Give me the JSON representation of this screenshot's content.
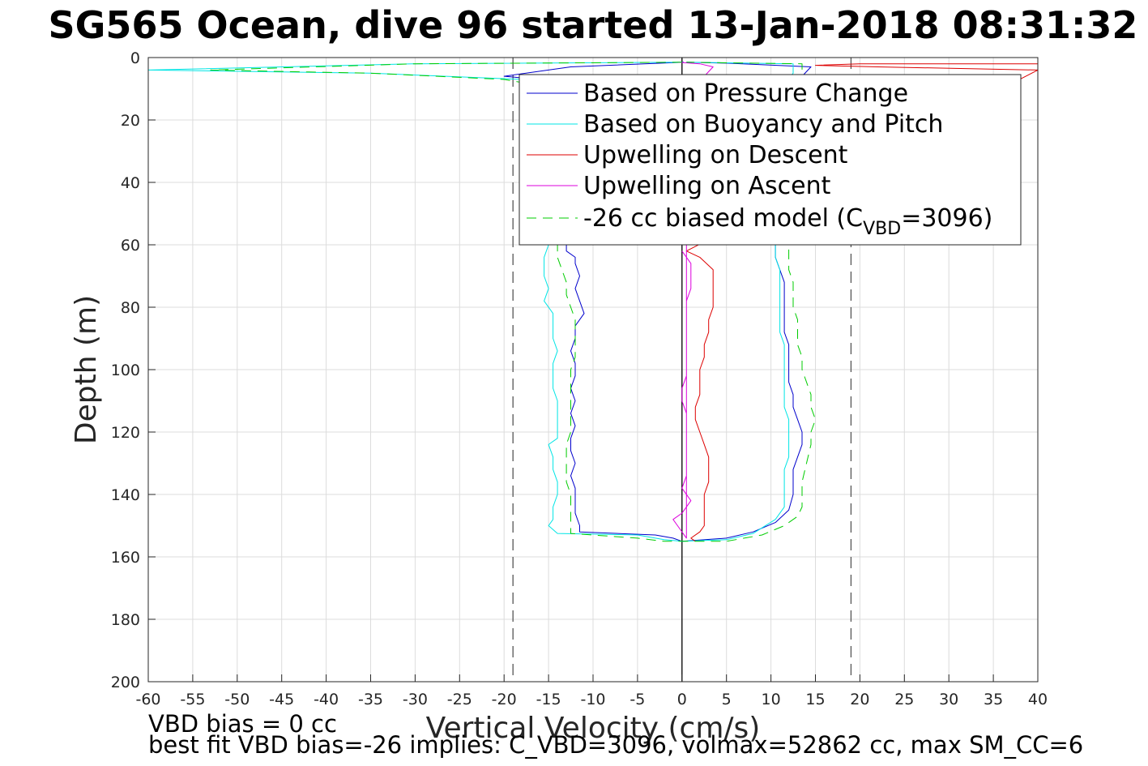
{
  "chart_data": {
    "type": "line",
    "title": "SG565 Ocean, dive 96 started 13-Jan-2018 08:31:32",
    "xlabel": "Vertical Velocity (cm/s)",
    "ylabel": "Depth (m)",
    "xlim": [
      -60,
      40
    ],
    "ylim": [
      0,
      200
    ],
    "y_reversed": true,
    "x_ticks": [
      -60,
      -55,
      -50,
      -45,
      -40,
      -35,
      -30,
      -25,
      -20,
      -15,
      -10,
      -5,
      0,
      5,
      10,
      15,
      20,
      25,
      30,
      35,
      40
    ],
    "y_ticks": [
      0,
      20,
      40,
      60,
      80,
      100,
      120,
      140,
      160,
      180,
      200
    ],
    "grid": true,
    "legend_position": "top-right",
    "reference_lines": [
      {
        "x": -19,
        "style": "dashed",
        "color": "#555555"
      },
      {
        "x": 19,
        "style": "dashed",
        "color": "#555555"
      },
      {
        "x": 0,
        "style": "solid",
        "color": "#000000"
      }
    ],
    "series": [
      {
        "name": "Based on Pressure Change",
        "color": "#0000cc",
        "style": "solid",
        "points": [
          [
            0.2,
            1.5
          ],
          [
            -12.5,
            3
          ],
          [
            -20,
            6
          ],
          [
            -12,
            8
          ],
          [
            -12,
            12
          ],
          [
            -13,
            60
          ],
          [
            -13,
            62
          ],
          [
            -12,
            64
          ],
          [
            -12,
            66
          ],
          [
            -11.5,
            70
          ],
          [
            -12,
            74
          ],
          [
            -11.5,
            78
          ],
          [
            -11,
            82
          ],
          [
            -12,
            86
          ],
          [
            -12,
            90
          ],
          [
            -12.5,
            94
          ],
          [
            -12,
            98
          ],
          [
            -12,
            102
          ],
          [
            -12.5,
            106
          ],
          [
            -12,
            110
          ],
          [
            -12.5,
            114
          ],
          [
            -12,
            118
          ],
          [
            -12.5,
            122
          ],
          [
            -12.5,
            126
          ],
          [
            -12,
            130
          ],
          [
            -12.5,
            134
          ],
          [
            -12,
            138
          ],
          [
            -12,
            142
          ],
          [
            -12,
            146
          ],
          [
            -11.5,
            150
          ],
          [
            -11.5,
            152
          ],
          [
            -3,
            153
          ],
          [
            -1,
            154
          ],
          [
            0,
            155
          ],
          [
            5,
            154
          ],
          [
            8,
            152
          ],
          [
            10.5,
            149
          ],
          [
            12,
            145
          ],
          [
            12.5,
            140
          ],
          [
            12.5,
            136
          ],
          [
            12.5,
            132
          ],
          [
            13,
            128
          ],
          [
            13.5,
            124
          ],
          [
            13.5,
            120
          ],
          [
            13,
            116
          ],
          [
            12.5,
            112
          ],
          [
            12.5,
            108
          ],
          [
            12,
            104
          ],
          [
            12,
            100
          ],
          [
            12,
            96
          ],
          [
            12,
            92
          ],
          [
            11.5,
            88
          ],
          [
            11.5,
            84
          ],
          [
            11.5,
            80
          ],
          [
            11.5,
            76
          ],
          [
            11.5,
            72
          ],
          [
            11,
            68
          ],
          [
            10.5,
            64
          ],
          [
            10.5,
            60
          ],
          [
            11,
            12
          ],
          [
            13.5,
            6
          ],
          [
            14.5,
            3
          ],
          [
            5,
            1.8
          ],
          [
            0.5,
            1.5
          ]
        ]
      },
      {
        "name": "Based on Buoyancy and Pitch",
        "color": "#00e5e5",
        "style": "solid",
        "points": [
          [
            0,
            1.5
          ],
          [
            -30,
            2
          ],
          [
            -60,
            4
          ],
          [
            -35,
            5
          ],
          [
            -18,
            7
          ],
          [
            -15,
            10
          ],
          [
            -15,
            60
          ],
          [
            -15.5,
            64
          ],
          [
            -15.5,
            70
          ],
          [
            -15,
            74
          ],
          [
            -15.5,
            78
          ],
          [
            -14.5,
            82
          ],
          [
            -14.5,
            86
          ],
          [
            -14.5,
            90
          ],
          [
            -14,
            94
          ],
          [
            -14.5,
            98
          ],
          [
            -14.5,
            102
          ],
          [
            -14.5,
            106
          ],
          [
            -14,
            110
          ],
          [
            -14,
            114
          ],
          [
            -14,
            118
          ],
          [
            -14,
            122
          ],
          [
            -15,
            124
          ],
          [
            -14.5,
            128
          ],
          [
            -14.5,
            132
          ],
          [
            -14,
            136
          ],
          [
            -14,
            140
          ],
          [
            -14.5,
            144
          ],
          [
            -14.5,
            148
          ],
          [
            -15,
            150
          ],
          [
            -14,
            152.5
          ],
          [
            -5,
            153
          ],
          [
            -2,
            154.5
          ],
          [
            0,
            155
          ],
          [
            5,
            154.5
          ],
          [
            8,
            152.5
          ],
          [
            10.5,
            148
          ],
          [
            11.5,
            144
          ],
          [
            11.5,
            140
          ],
          [
            11.5,
            136
          ],
          [
            11.5,
            132
          ],
          [
            12,
            128
          ],
          [
            12,
            124
          ],
          [
            12,
            120
          ],
          [
            12,
            116
          ],
          [
            11.5,
            112
          ],
          [
            11.5,
            108
          ],
          [
            11.5,
            104
          ],
          [
            11.5,
            100
          ],
          [
            11.5,
            96
          ],
          [
            11.5,
            92
          ],
          [
            11,
            88
          ],
          [
            11,
            84
          ],
          [
            11,
            80
          ],
          [
            11,
            76
          ],
          [
            11,
            72
          ],
          [
            11,
            68
          ],
          [
            10.5,
            64
          ],
          [
            10.5,
            60
          ],
          [
            10.5,
            12
          ],
          [
            12.5,
            5
          ],
          [
            12.5,
            2
          ],
          [
            0.5,
            1.5
          ]
        ]
      },
      {
        "name": "Upwelling on Descent",
        "color": "#dd0000",
        "style": "solid",
        "points": [
          [
            40,
            2
          ],
          [
            20,
            2
          ],
          [
            15,
            2.5
          ],
          [
            22,
            3
          ],
          [
            40,
            4
          ],
          [
            0.5,
            62
          ],
          [
            2,
            64
          ],
          [
            3.5,
            68
          ],
          [
            3.5,
            72
          ],
          [
            3.5,
            76
          ],
          [
            3.5,
            80
          ],
          [
            3,
            84
          ],
          [
            3,
            88
          ],
          [
            2.5,
            92
          ],
          [
            2.5,
            96
          ],
          [
            2,
            100
          ],
          [
            2,
            104
          ],
          [
            2,
            108
          ],
          [
            1.5,
            112
          ],
          [
            1.5,
            116
          ],
          [
            2,
            120
          ],
          [
            2.5,
            124
          ],
          [
            3,
            128
          ],
          [
            3,
            132
          ],
          [
            3,
            136
          ],
          [
            2.5,
            140
          ],
          [
            2.5,
            144
          ],
          [
            2.5,
            148
          ],
          [
            2.5,
            150
          ],
          [
            2,
            152
          ],
          [
            1,
            154
          ],
          [
            1.5,
            155
          ]
        ]
      },
      {
        "name": "Upwelling on Ascent",
        "color": "#dd00dd",
        "style": "solid",
        "points": [
          [
            0,
            62
          ],
          [
            1,
            66
          ],
          [
            1,
            70
          ],
          [
            1,
            74
          ],
          [
            0.5,
            78
          ],
          [
            0.5,
            82
          ],
          [
            0.5,
            86
          ],
          [
            0.5,
            90
          ],
          [
            0.5,
            94
          ],
          [
            0.5,
            98
          ],
          [
            0.5,
            102
          ],
          [
            0,
            106
          ],
          [
            0,
            110
          ],
          [
            0.5,
            114
          ],
          [
            0.5,
            118
          ],
          [
            0.5,
            122
          ],
          [
            0.5,
            126
          ],
          [
            0.5,
            130
          ],
          [
            0.5,
            134
          ],
          [
            0,
            138
          ],
          [
            1,
            142
          ],
          [
            0,
            146
          ],
          [
            -1,
            148
          ],
          [
            -0.5,
            150
          ],
          [
            0,
            152
          ],
          [
            0.5,
            154
          ],
          [
            0.5,
            12
          ],
          [
            0.5,
            8
          ],
          [
            2.5,
            6
          ],
          [
            3.5,
            3
          ],
          [
            2,
            2
          ],
          [
            -0.5,
            1.5
          ]
        ]
      },
      {
        "name": "-26 cc biased model (C_VBD=3096)",
        "color": "#00cc00",
        "style": "dashed",
        "points": [
          [
            0,
            1.5
          ],
          [
            -30,
            2
          ],
          [
            -53,
            4
          ],
          [
            -35,
            5
          ],
          [
            -20,
            7
          ],
          [
            -14,
            10
          ],
          [
            -14,
            60
          ],
          [
            -14,
            64
          ],
          [
            -13.5,
            68
          ],
          [
            -13,
            72
          ],
          [
            -13,
            76
          ],
          [
            -12.5,
            80
          ],
          [
            -12,
            84
          ],
          [
            -12,
            88
          ],
          [
            -12,
            92
          ],
          [
            -12,
            96
          ],
          [
            -12.5,
            100
          ],
          [
            -12.5,
            104
          ],
          [
            -12.5,
            108
          ],
          [
            -12.5,
            112
          ],
          [
            -12.5,
            116
          ],
          [
            -12.5,
            120
          ],
          [
            -13,
            124
          ],
          [
            -13,
            128
          ],
          [
            -13,
            132
          ],
          [
            -13,
            136
          ],
          [
            -12.5,
            140
          ],
          [
            -12.5,
            144
          ],
          [
            -12.5,
            148
          ],
          [
            -12.5,
            150
          ],
          [
            -12.5,
            152.5
          ],
          [
            -5,
            154
          ],
          [
            -2,
            155
          ],
          [
            5,
            155
          ],
          [
            9,
            153
          ],
          [
            11.5,
            150
          ],
          [
            13,
            147
          ],
          [
            13.5,
            144
          ],
          [
            13.5,
            140
          ],
          [
            13.5,
            136
          ],
          [
            14,
            130
          ],
          [
            14.5,
            124
          ],
          [
            14.5,
            120
          ],
          [
            15,
            116
          ],
          [
            14.5,
            112
          ],
          [
            14.5,
            108
          ],
          [
            14,
            104
          ],
          [
            13.5,
            100
          ],
          [
            13.5,
            96
          ],
          [
            13,
            92
          ],
          [
            13,
            88
          ],
          [
            13,
            84
          ],
          [
            12.5,
            80
          ],
          [
            12.5,
            76
          ],
          [
            12.5,
            72
          ],
          [
            12,
            68
          ],
          [
            12,
            64
          ],
          [
            12,
            60
          ],
          [
            12,
            10
          ],
          [
            13.5,
            5
          ],
          [
            13.5,
            2
          ],
          [
            0.5,
            1.5
          ]
        ]
      }
    ],
    "legend_text": {
      "pressure": "Based on Pressure Change",
      "buoyancy": "Based on Buoyancy and Pitch",
      "descent": "Upwelling on Descent",
      "ascent": "Upwelling on Ascent",
      "model_prefix": "-26 cc biased model (C",
      "model_sub": "VBD",
      "model_suffix": "=3096)"
    },
    "annotations": [
      "VBD bias = 0 cc",
      "best fit VBD bias=-26 implies: C_VBD=3096, volmax=52862 cc, max SM_CC=6"
    ]
  }
}
